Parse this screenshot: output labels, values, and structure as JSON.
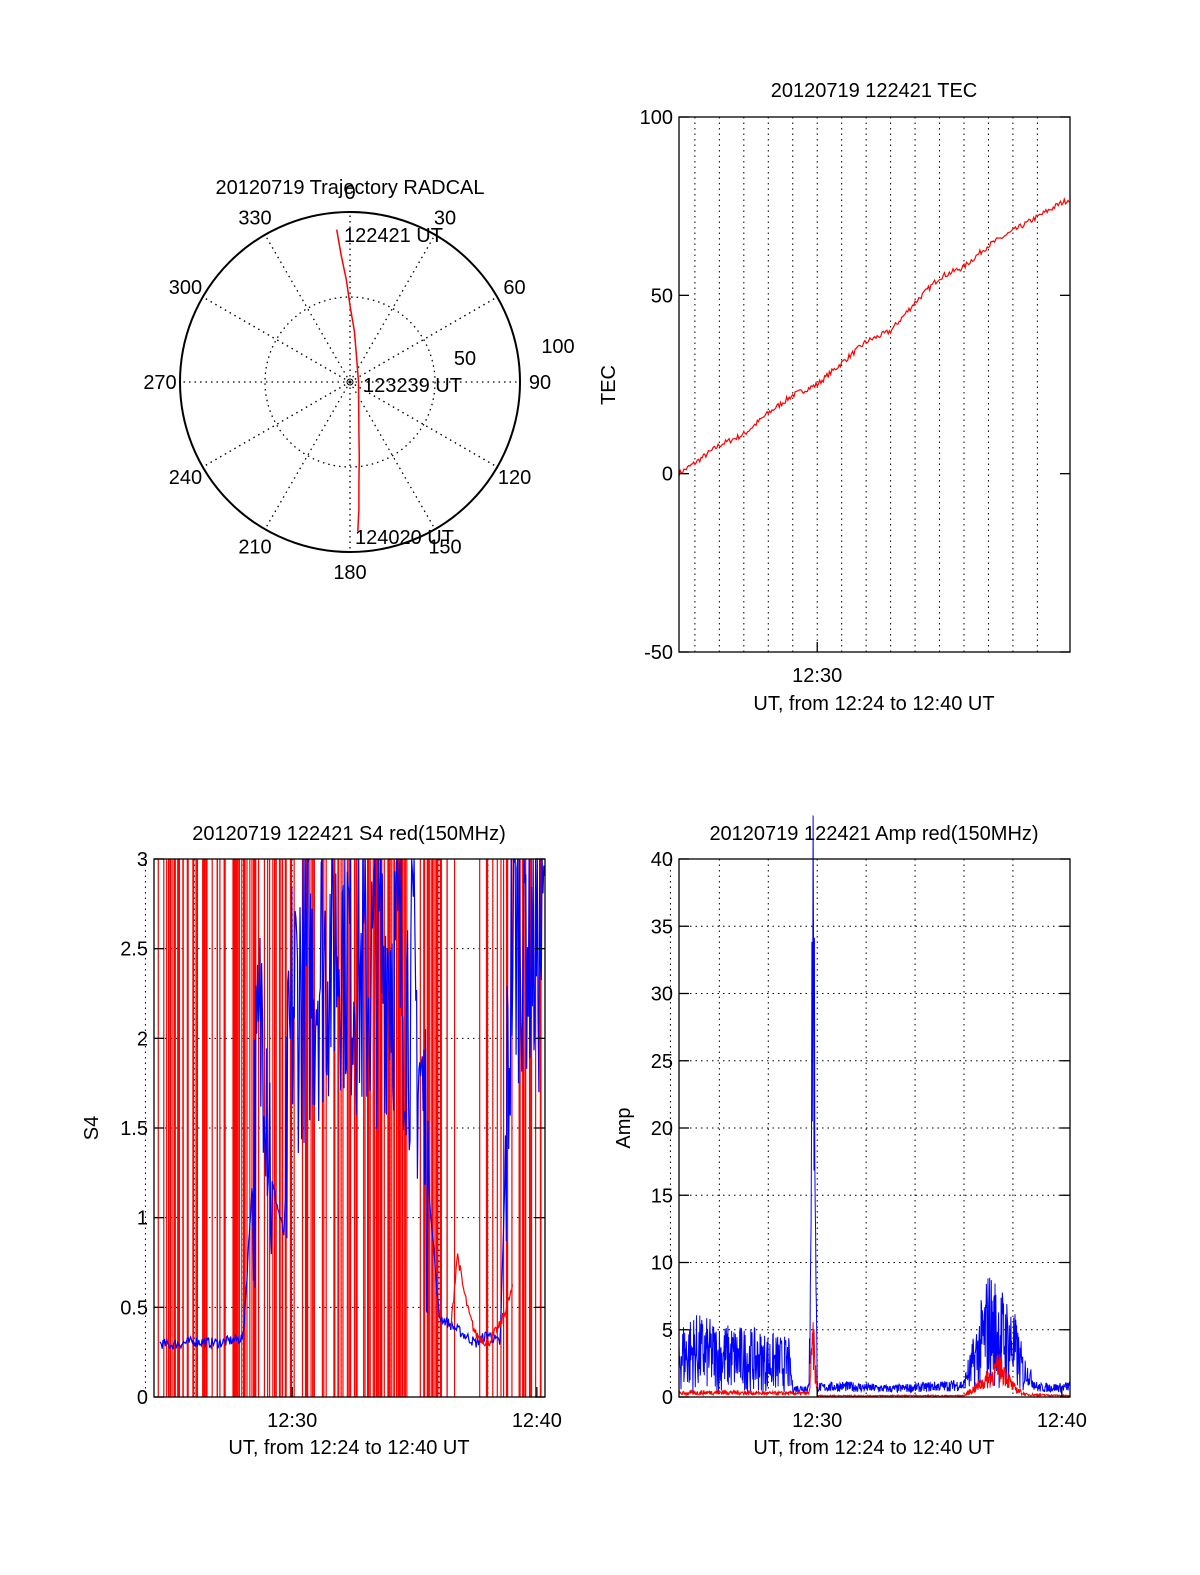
{
  "colors": {
    "red": "#ff0000",
    "blue": "#0000ff",
    "axis": "#000000",
    "grid": "#000000"
  },
  "chart_data": [
    {
      "id": "trajectory",
      "type": "polar",
      "title": "20120719 Trajectory RADCAL",
      "angle_labels": [
        "0",
        "30",
        "60",
        "90",
        "120",
        "150",
        "180",
        "210",
        "240",
        "270",
        "300",
        "330"
      ],
      "radius_labels": [
        "50",
        "100"
      ],
      "rlim": [
        0,
        100
      ],
      "annotations": [
        {
          "text": "122421 UT",
          "az": 5,
          "el_from_center": 88
        },
        {
          "text": "123239 UT",
          "az": 90,
          "el_from_center": 5
        },
        {
          "text": "124020 UT",
          "az": 178,
          "el_from_center": 85
        }
      ],
      "trajectory": {
        "color": "red",
        "points": [
          {
            "az": 355,
            "r": 90
          },
          {
            "az": 356,
            "r": 75
          },
          {
            "az": 358,
            "r": 60
          },
          {
            "az": 0,
            "r": 45
          },
          {
            "az": 5,
            "r": 30
          },
          {
            "az": 15,
            "r": 15
          },
          {
            "az": 90,
            "r": 5
          },
          {
            "az": 160,
            "r": 15
          },
          {
            "az": 170,
            "r": 30
          },
          {
            "az": 173,
            "r": 45
          },
          {
            "az": 175,
            "r": 60
          },
          {
            "az": 176,
            "r": 75
          },
          {
            "az": 177,
            "r": 88
          }
        ]
      }
    },
    {
      "id": "tec",
      "type": "line",
      "title": "20120719 122421 TEC",
      "ylabel": "TEC",
      "xlabel": "UT, from 12:24 to 12:40 UT",
      "xlim": [
        "12:24:21",
        "12:40:20"
      ],
      "ylim": [
        -50,
        100
      ],
      "yticks": [
        "-50",
        "0",
        "50",
        "100"
      ],
      "xticks": [
        {
          "label": "12:30",
          "t": "12:30:00"
        }
      ],
      "x_grid_minutes": [
        25,
        26,
        27,
        28,
        29,
        30,
        31,
        32,
        33,
        34,
        35,
        36,
        37,
        38,
        39
      ],
      "series": [
        {
          "color": "red",
          "x": [
            "12:24:21",
            "12:25:00",
            "12:26:00",
            "12:27:00",
            "12:28:00",
            "12:29:00",
            "12:30:00",
            "12:31:00",
            "12:32:00",
            "12:33:00",
            "12:34:00",
            "12:35:00",
            "12:36:00",
            "12:37:00",
            "12:38:00",
            "12:39:00",
            "12:40:00",
            "12:40:20"
          ],
          "values": [
            0,
            3,
            8,
            11,
            17,
            22,
            25,
            31,
            37,
            40,
            48,
            55,
            58,
            64,
            68,
            72,
            76,
            77
          ]
        }
      ]
    },
    {
      "id": "s4",
      "type": "line",
      "title": "20120719 122421 S4 red(150MHz)",
      "ylabel": "S4",
      "xlabel": "UT, from 12:24 to 12:40 UT",
      "xlim": [
        "12:24:21",
        "12:40:20"
      ],
      "ylim": [
        0,
        3
      ],
      "yticks": [
        "0",
        "0.5",
        "1",
        "1.5",
        "2",
        "2.5",
        "3"
      ],
      "xticks": [
        {
          "label": "12:30",
          "t": "12:30:00"
        },
        {
          "label": "12:40",
          "t": "12:40:00"
        }
      ],
      "series": [
        {
          "color": "blue",
          "x": [
            "12:24:35",
            "12:25:00",
            "12:26:00",
            "12:27:00",
            "12:28:00",
            "12:28:50",
            "12:29:10",
            "12:29:40",
            "12:30:00",
            "12:31:00",
            "12:32:00",
            "12:33:00",
            "12:34:00",
            "12:35:00",
            "12:36:00",
            "12:36:30",
            "12:37:00",
            "12:37:30",
            "12:38:00",
            "12:38:30",
            "12:39:00",
            "12:39:30",
            "12:40:00",
            "12:40:20"
          ],
          "values": [
            0.3,
            0.29,
            0.31,
            0.3,
            0.33,
            2.3,
            1.2,
            0.9,
            2.2,
            2.4,
            2.6,
            2.3,
            2.5,
            2.2,
            0.45,
            0.4,
            0.35,
            0.3,
            0.35,
            0.3,
            2.6,
            2.7,
            2.5,
            2.6
          ]
        },
        {
          "color": "red",
          "x": [
            "12:36:30",
            "12:36:45",
            "12:37:00",
            "12:37:15",
            "12:37:30",
            "12:38:00",
            "12:38:30",
            "12:39:00"
          ],
          "values": [
            0.4,
            0.8,
            0.6,
            0.45,
            0.35,
            0.3,
            0.4,
            0.6
          ]
        }
      ]
    },
    {
      "id": "amp",
      "type": "line",
      "title": "20120719 122421 Amp red(150MHz)",
      "ylabel": "Amp",
      "xlabel": "UT, from 12:24 to 12:40 UT",
      "xlim": [
        "12:24:21",
        "12:40:20"
      ],
      "ylim": [
        0,
        40
      ],
      "yticks": [
        "0",
        "5",
        "10",
        "15",
        "20",
        "25",
        "30",
        "35",
        "40"
      ],
      "xticks": [
        {
          "label": "12:30",
          "t": "12:30:00"
        },
        {
          "label": "12:40",
          "t": "12:40:00"
        }
      ],
      "series": [
        {
          "color": "blue",
          "x": [
            "12:24:21",
            "12:25:00",
            "12:26:00",
            "12:27:00",
            "12:28:00",
            "12:28:50",
            "12:29:00",
            "12:29:40",
            "12:29:50",
            "12:30:00",
            "12:30:10",
            "12:31:00",
            "12:32:00",
            "12:33:00",
            "12:34:00",
            "12:35:00",
            "12:36:00",
            "12:36:30",
            "12:37:00",
            "12:37:30",
            "12:38:00",
            "12:38:30",
            "12:39:00",
            "12:40:00",
            "12:40:20"
          ],
          "values": [
            4,
            4.5,
            4,
            3.8,
            3.5,
            3.2,
            0.6,
            0.7,
            36,
            0.8,
            0.7,
            0.8,
            0.7,
            0.6,
            0.7,
            0.8,
            0.9,
            4,
            7,
            6,
            5,
            2,
            0.7,
            0.7,
            0.8
          ]
        },
        {
          "color": "red",
          "x": [
            "12:24:21",
            "12:26:00",
            "12:28:00",
            "12:29:40",
            "12:29:50",
            "12:30:00",
            "12:32:00",
            "12:34:00",
            "12:36:00",
            "12:37:00",
            "12:37:30",
            "12:38:00",
            "12:38:30",
            "12:40:20"
          ],
          "values": [
            0.3,
            0.4,
            0.3,
            0.3,
            4.5,
            0.1,
            0.1,
            0.1,
            0.1,
            1.5,
            2.5,
            0.8,
            0.2,
            0.1
          ]
        }
      ]
    }
  ]
}
